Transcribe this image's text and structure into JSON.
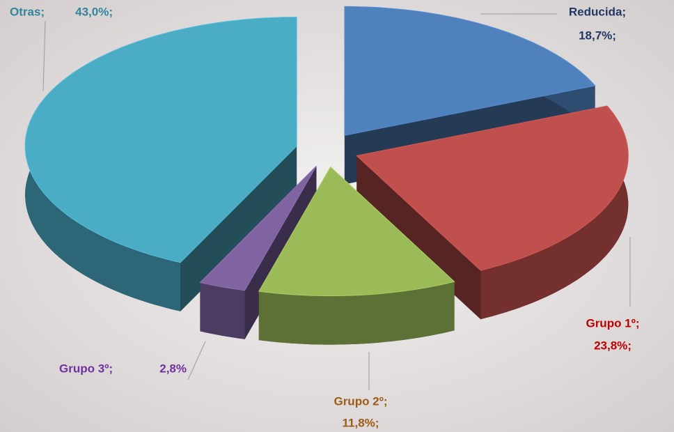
{
  "chart_data": {
    "type": "pie",
    "categories": [
      "Reducida;",
      "Grupo 1º;",
      "Grupo 2º;",
      "Grupo 3º;",
      "Otras;"
    ],
    "values": [
      18.7,
      23.8,
      11.8,
      2.8,
      43.0
    ],
    "value_labels": [
      "18,7%;",
      "23,8%;",
      "11,8%;",
      "2,8%",
      "43,0%;"
    ],
    "colors": [
      "#4f81bd",
      "#c0504d",
      "#9bbb59",
      "#8064a2",
      "#4bacc6"
    ],
    "label_colors": [
      "#1f3864",
      "#c00000",
      "#9c5b14",
      "#7030a0",
      "#31859c"
    ]
  }
}
